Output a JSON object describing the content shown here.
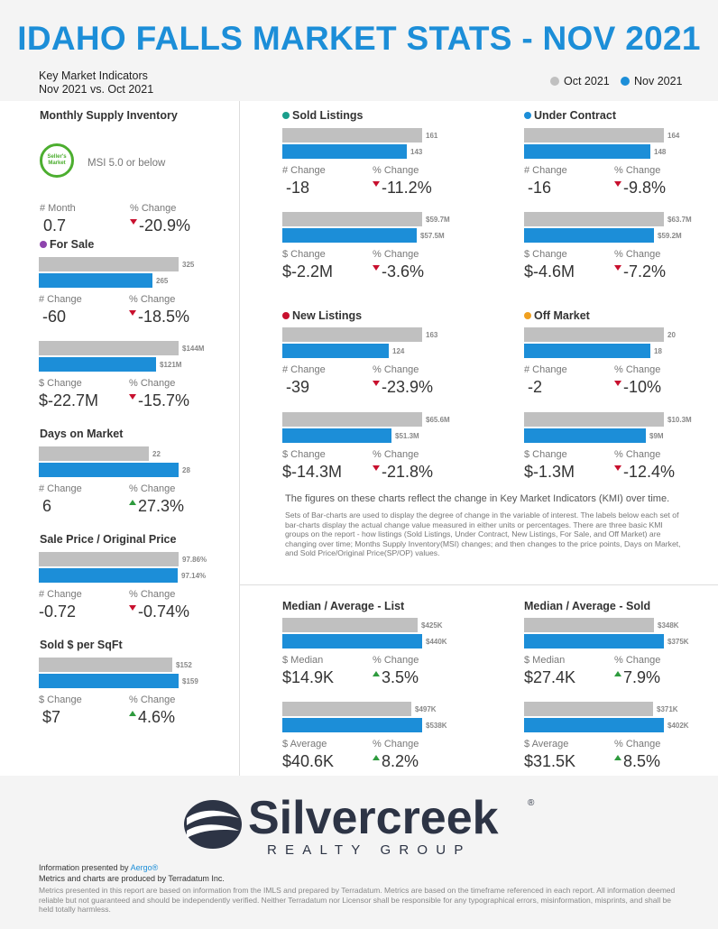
{
  "title": "IDAHO FALLS MARKET STATS - NOV 2021",
  "subtitle": {
    "line1": "Key Market Indicators",
    "line2": "Nov 2021 vs. Oct 2021"
  },
  "legend": [
    {
      "label": "Oct 2021",
      "color": "#c0c0c0"
    },
    {
      "label": "Nov 2021",
      "color": "#1c8ed8"
    }
  ],
  "msi": {
    "title": "Monthly Supply Inventory",
    "badge": "Seller's Market",
    "note": "MSI 5.0 or below",
    "labels": [
      "# Month",
      "% Change"
    ],
    "values": [
      "0.7",
      "-20.9%"
    ],
    "dir": "down"
  },
  "for_sale": {
    "title": "For Sale",
    "dot": "#8e44ad",
    "count": {
      "bars": [
        "325",
        "265"
      ],
      "labels": [
        "# Change",
        "% Change"
      ],
      "values": [
        "-60",
        "-18.5%"
      ],
      "dir": "down"
    },
    "volume": {
      "bars": [
        "$144M",
        "$121M"
      ],
      "labels": [
        "$ Change",
        "% Change"
      ],
      "values": [
        "$-22.7M",
        "-15.7%"
      ],
      "dir": "down"
    }
  },
  "dom": {
    "title": "Days on Market",
    "bars": [
      "22",
      "28"
    ],
    "labels": [
      "# Change",
      "% Change"
    ],
    "values": [
      "6",
      "27.3%"
    ],
    "dir": "up"
  },
  "spop": {
    "title": "Sale Price / Original Price",
    "bars": [
      "97.86%",
      "97.14%"
    ],
    "labels": [
      "# Change",
      "% Change"
    ],
    "values": [
      "-0.72",
      "-0.74%"
    ],
    "dir": "down"
  },
  "sqft": {
    "title": "Sold $ per SqFt",
    "bars": [
      "$152",
      "$159"
    ],
    "labels": [
      "$ Change",
      "% Change"
    ],
    "values": [
      "$7",
      "4.6%"
    ],
    "dir": "up"
  },
  "sold": {
    "title": "Sold Listings",
    "dot": "#1a9e8c",
    "count": {
      "bars": [
        "161",
        "143"
      ],
      "labels": [
        "# Change",
        "% Change"
      ],
      "values": [
        "-18",
        "-11.2%"
      ],
      "dir": "down"
    },
    "volume": {
      "bars": [
        "$59.7M",
        "$57.5M"
      ],
      "labels": [
        "$ Change",
        "% Change"
      ],
      "values": [
        "$-2.2M",
        "-3.6%"
      ],
      "dir": "down"
    }
  },
  "under_contract": {
    "title": "Under Contract",
    "dot": "#1c8ed8",
    "count": {
      "bars": [
        "164",
        "148"
      ],
      "labels": [
        "# Change",
        "% Change"
      ],
      "values": [
        "-16",
        "-9.8%"
      ],
      "dir": "down"
    },
    "volume": {
      "bars": [
        "$63.7M",
        "$59.2M"
      ],
      "labels": [
        "$ Change",
        "% Change"
      ],
      "values": [
        "$-4.6M",
        "-7.2%"
      ],
      "dir": "down"
    }
  },
  "new_listings": {
    "title": "New Listings",
    "dot": "#c8102e",
    "count": {
      "bars": [
        "163",
        "124"
      ],
      "labels": [
        "# Change",
        "% Change"
      ],
      "values": [
        "-39",
        "-23.9%"
      ],
      "dir": "down"
    },
    "volume": {
      "bars": [
        "$65.6M",
        "$51.3M"
      ],
      "labels": [
        "$ Change",
        "% Change"
      ],
      "values": [
        "$-14.3M",
        "-21.8%"
      ],
      "dir": "down"
    }
  },
  "off_market": {
    "title": "Off Market",
    "dot": "#f0a020",
    "count": {
      "bars": [
        "20",
        "18"
      ],
      "labels": [
        "# Change",
        "% Change"
      ],
      "values": [
        "-2",
        "-10%"
      ],
      "dir": "down"
    },
    "volume": {
      "bars": [
        "$10.3M",
        "$9M"
      ],
      "labels": [
        "$ Change",
        "% Change"
      ],
      "values": [
        "$-1.3M",
        "-12.4%"
      ],
      "dir": "down"
    }
  },
  "explain": {
    "lead": "The figures on these charts reflect the change in Key Market Indicators (KMI) over time.",
    "body": "Sets of Bar-charts are used to display the degree of change in the variable of interest. The labels below each set of bar-charts display the actual change value measured in either units or percentages. There are three basic KMI groups on the report - how listings (Sold Listings, Under Contract, New Listings, For Sale, and Off Market) are changing over time; Months Supply Inventory(MSI) changes; and then changes to the price points, Days on Market, and Sold Price/Original Price(SP/OP) values."
  },
  "list_price": {
    "title": "Median / Average - List",
    "median": {
      "bars": [
        "$425K",
        "$440K"
      ],
      "labels": [
        "$ Median",
        "% Change"
      ],
      "values": [
        "$14.9K",
        "3.5%"
      ],
      "dir": "up"
    },
    "average": {
      "bars": [
        "$497K",
        "$538K"
      ],
      "labels": [
        "$ Average",
        "% Change"
      ],
      "values": [
        "$40.6K",
        "8.2%"
      ],
      "dir": "up"
    }
  },
  "sold_price": {
    "title": "Median / Average - Sold",
    "median": {
      "bars": [
        "$348K",
        "$375K"
      ],
      "labels": [
        "$ Median",
        "% Change"
      ],
      "values": [
        "$27.4K",
        "7.9%"
      ],
      "dir": "up"
    },
    "average": {
      "bars": [
        "$371K",
        "$402K"
      ],
      "labels": [
        "$ Average",
        "% Change"
      ],
      "values": [
        "$31.5K",
        "8.5%"
      ],
      "dir": "up"
    }
  },
  "footer": {
    "brand": "Silvercreek",
    "brand_sub": "REALTY GROUP",
    "reg": "®",
    "presented_prefix": "Information presented by ",
    "presented_link": "Aergo®",
    "produced": "Metrics and charts are produced by Terradatum Inc.",
    "disclaimer": "Metrics presented in this report are based on information from the IMLS and prepared by Terradatum. Metrics are based on the timeframe referenced in each report. All information deemed reliable but not guaranteed and should be independently verified. Neither Terradatum nor Licensor shall be responsible for any typographical errors, misinformation, misprints, and shall be held totally harmless."
  }
}
